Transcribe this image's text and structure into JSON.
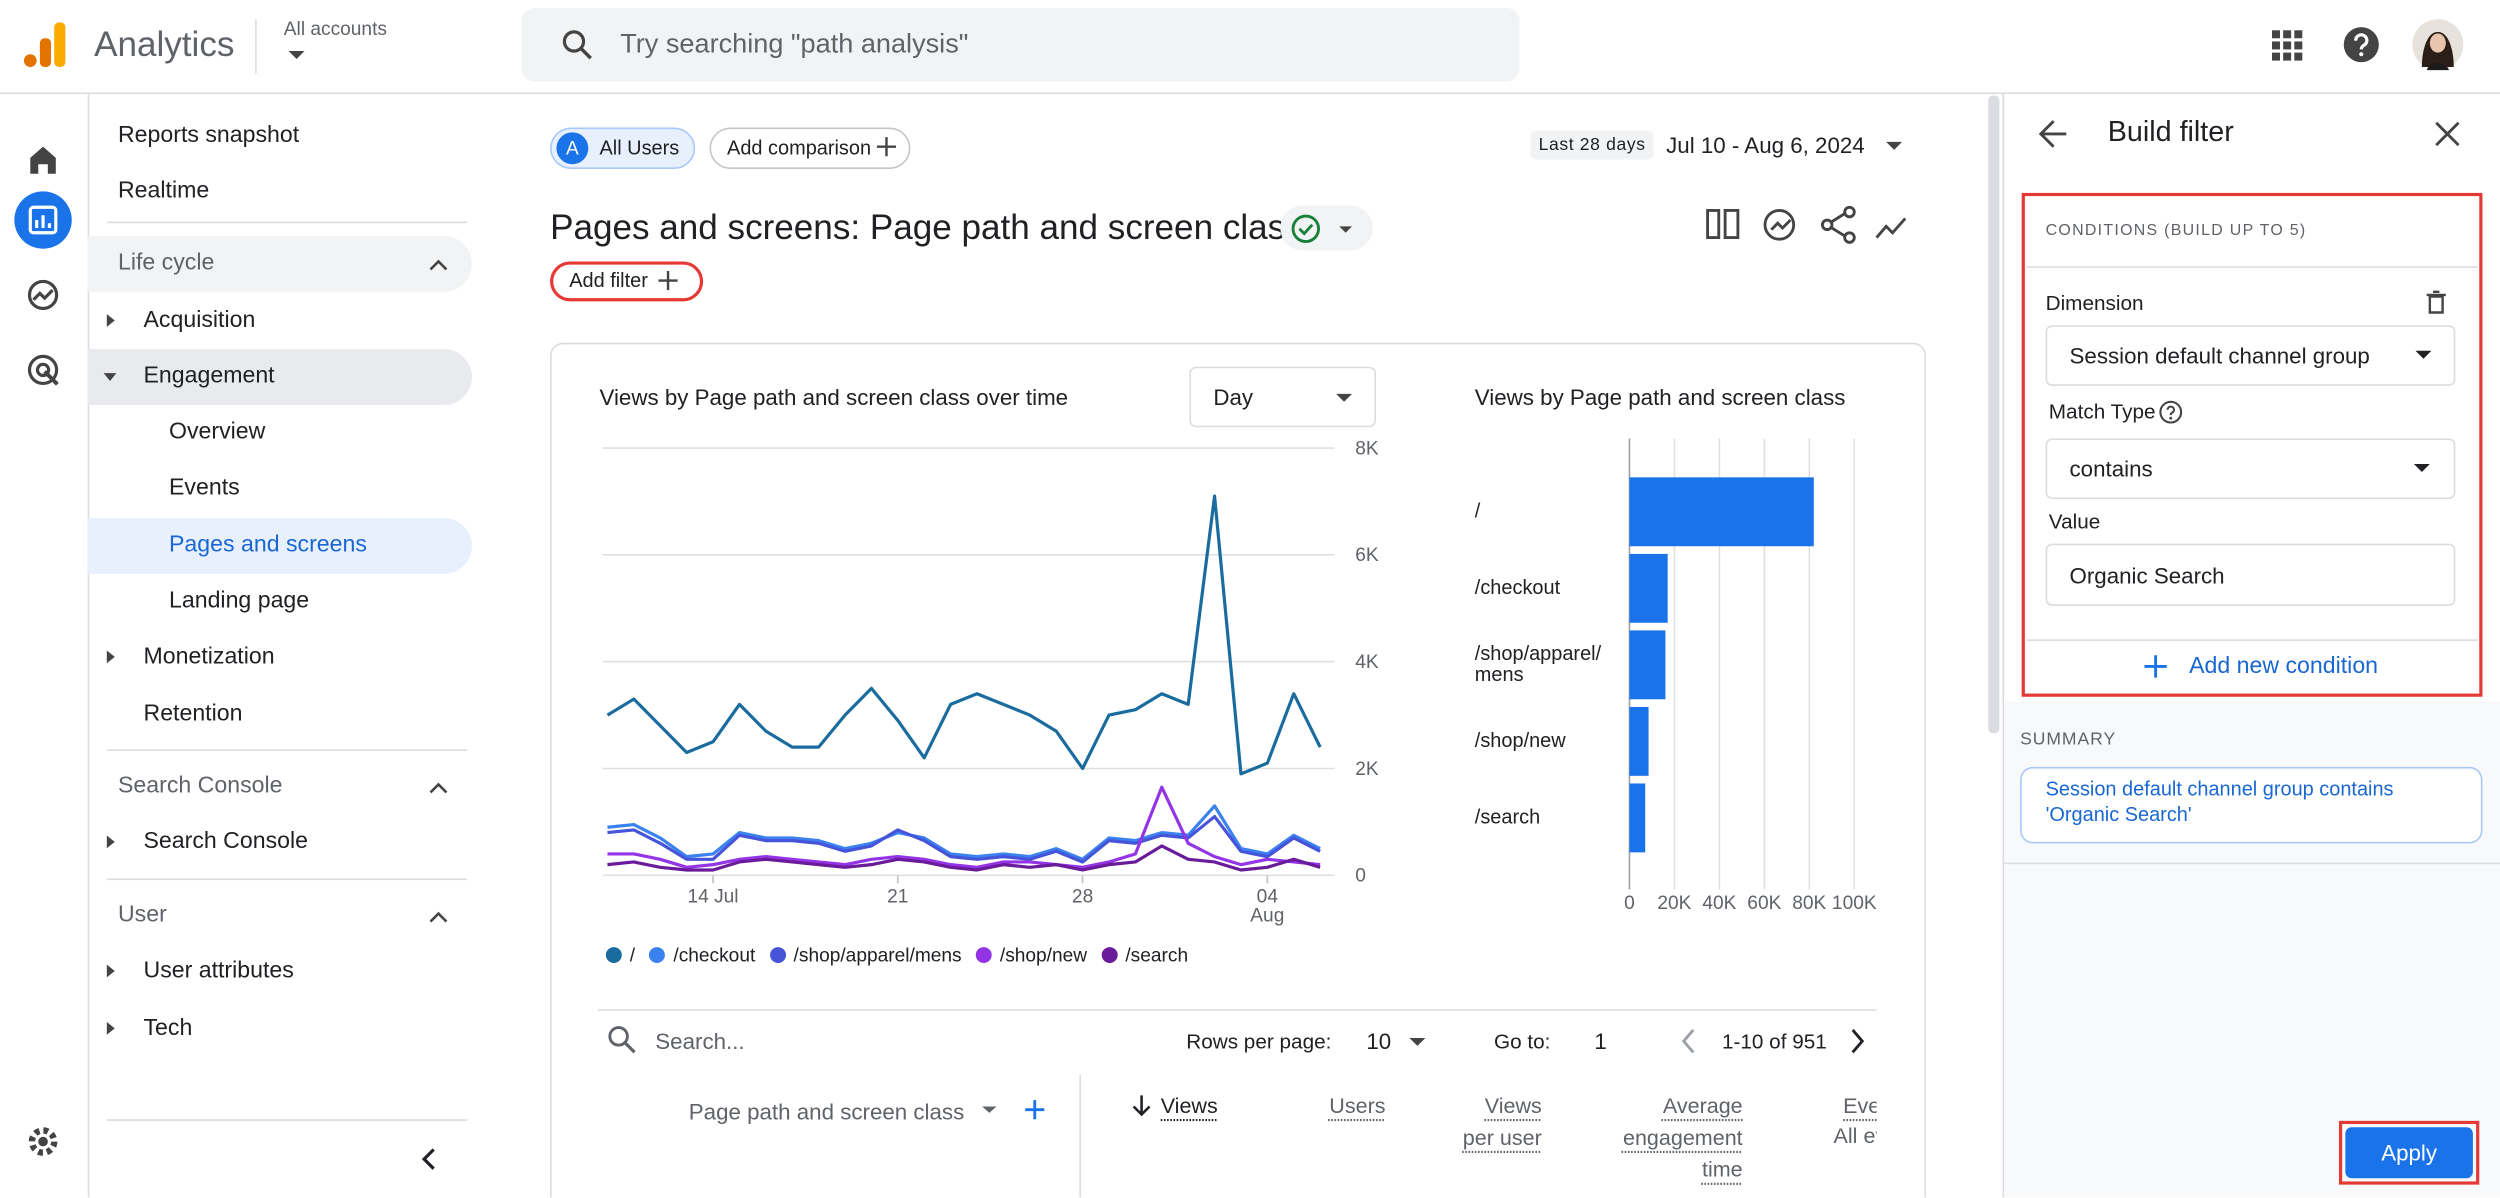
{
  "header": {
    "product": "Analytics",
    "account": "All accounts",
    "search_placeholder": "Try searching \"path analysis\""
  },
  "nav": {
    "top": [
      "Reports snapshot",
      "Realtime"
    ],
    "sections": [
      {
        "title": "Life cycle",
        "items": [
          "Acquisition",
          "Engagement",
          "Overview",
          "Events",
          "Pages and screens",
          "Landing page",
          "Monetization",
          "Retention"
        ]
      },
      {
        "title": "Search Console",
        "items": [
          "Search Console"
        ]
      },
      {
        "title": "User",
        "items": [
          "User attributes",
          "Tech"
        ]
      }
    ]
  },
  "toolbar": {
    "segment_badge": "A",
    "segment": "All Users",
    "add_comparison": "Add comparison",
    "date_badge": "Last 28 days",
    "date_range": "Jul 10 - Aug 6, 2024"
  },
  "report": {
    "title": "Pages and screens: Page path and screen class",
    "add_filter": "Add filter"
  },
  "chart_data": [
    {
      "type": "line",
      "title": "Views by Page path and screen class over time",
      "interval": "Day",
      "categories": [
        null,
        null,
        null,
        null,
        "14 Jul",
        null,
        null,
        null,
        null,
        null,
        null,
        "21",
        null,
        null,
        null,
        null,
        null,
        null,
        "28",
        null,
        null,
        null,
        null,
        null,
        null,
        "04 Aug",
        null,
        null
      ],
      "series": [
        {
          "name": "/",
          "color": "#1b6c9e",
          "values": [
            3000,
            3300,
            2800,
            2300,
            2500,
            3200,
            2700,
            2400,
            2400,
            3000,
            3500,
            2900,
            2200,
            3200,
            3400,
            3200,
            3000,
            2700,
            2000,
            3000,
            3100,
            3400,
            3200,
            7100,
            1900,
            2100,
            3400,
            2400
          ]
        },
        {
          "name": "/checkout",
          "color": "#3b82f0",
          "values": [
            900,
            950,
            700,
            350,
            400,
            800,
            700,
            700,
            650,
            500,
            600,
            800,
            700,
            400,
            350,
            400,
            350,
            500,
            300,
            700,
            650,
            800,
            750,
            1300,
            500,
            400,
            750,
            500
          ]
        },
        {
          "name": "/shop/apparel/mens",
          "color": "#4554d9",
          "values": [
            800,
            850,
            600,
            300,
            300,
            750,
            650,
            650,
            600,
            450,
            550,
            850,
            650,
            350,
            300,
            350,
            300,
            450,
            250,
            650,
            600,
            750,
            700,
            1100,
            450,
            350,
            700,
            450
          ]
        },
        {
          "name": "/shop/new",
          "color": "#9334e6",
          "values": [
            400,
            400,
            300,
            150,
            200,
            300,
            350,
            300,
            250,
            200,
            300,
            350,
            300,
            200,
            150,
            250,
            250,
            200,
            150,
            250,
            400,
            1650,
            600,
            350,
            200,
            300,
            250,
            200
          ]
        },
        {
          "name": "/search",
          "color": "#6a1b9a",
          "values": [
            200,
            250,
            150,
            100,
            100,
            250,
            300,
            250,
            200,
            150,
            200,
            300,
            250,
            150,
            100,
            200,
            150,
            200,
            100,
            200,
            250,
            550,
            300,
            250,
            100,
            150,
            300,
            150
          ]
        }
      ],
      "ylim": [
        0,
        8000
      ],
      "yticks": [
        0,
        {
          "value": 2000,
          "label": "2K"
        },
        {
          "value": 4000,
          "label": "4K"
        },
        {
          "value": 6000,
          "label": "6K"
        },
        {
          "value": 8000,
          "label": "8K"
        }
      ],
      "grid": true,
      "legend": "bottom"
    },
    {
      "type": "bar",
      "orientation": "horizontal",
      "title": "Views by Page path and screen class",
      "categories": [
        "/",
        "/checkout",
        "/shop/apparel/mens",
        "/shop/new",
        "/search"
      ],
      "values": [
        82000,
        17000,
        16000,
        8500,
        7000
      ],
      "color": "#1a73e8",
      "xlim": [
        0,
        100000
      ],
      "xticks": [
        0,
        {
          "value": 20000,
          "label": "20K"
        },
        {
          "value": 40000,
          "label": "40K"
        },
        {
          "value": 60000,
          "label": "60K"
        },
        {
          "value": 80000,
          "label": "80K"
        },
        {
          "value": 100000,
          "label": "100K"
        }
      ],
      "grid": true
    }
  ],
  "table": {
    "search_placeholder": "Search...",
    "rows_per_page_label": "Rows per page:",
    "rows_per_page": 10,
    "goto_label": "Go to:",
    "goto_page": 1,
    "range": "1-10 of 951",
    "columns": [
      "Page path and screen class",
      "Views",
      "Users",
      "Views per user",
      "Average engagement time",
      "Event count"
    ],
    "event_subtitle": "All events"
  },
  "panel": {
    "title": "Build filter",
    "conditions_heading": "CONDITIONS (BUILD UP TO 5)",
    "dimension_label": "Dimension",
    "dimension": "Session default channel group",
    "match_type_label": "Match Type",
    "match_type": "contains",
    "value_label": "Value",
    "value": "Organic Search",
    "add_condition": "Add new condition",
    "summary_label": "SUMMARY",
    "summary": "Session default channel group contains 'Organic Search'",
    "apply": "Apply"
  }
}
